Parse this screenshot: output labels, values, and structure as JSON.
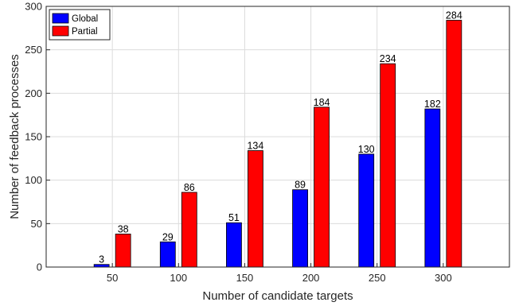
{
  "chart_data": {
    "type": "bar",
    "categories": [
      "50",
      "100",
      "150",
      "200",
      "250",
      "300"
    ],
    "series": [
      {
        "name": "Global",
        "values": [
          3,
          29,
          51,
          89,
          130,
          182
        ],
        "color": "#0000ff"
      },
      {
        "name": "Partial",
        "values": [
          38,
          86,
          134,
          184,
          234,
          284
        ],
        "color": "#ff0000"
      }
    ],
    "xlabel": "Number of candidate targets",
    "ylabel": "Number of feedback processes",
    "ylim": [
      0,
      300
    ],
    "yticks": [
      0,
      50,
      100,
      150,
      200,
      250,
      300
    ],
    "grid": true,
    "legend_position": "top-left",
    "data_labels": true
  }
}
